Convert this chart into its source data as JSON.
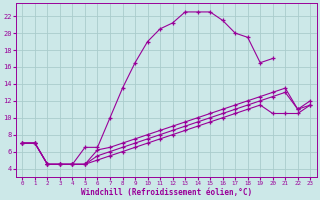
{
  "xlabel": "Windchill (Refroidissement éolien,°C)",
  "bg_color": "#cce8e8",
  "grid_color": "#aacccc",
  "line_color": "#990099",
  "xlim": [
    -0.5,
    23.5
  ],
  "ylim": [
    3,
    23.5
  ],
  "xticks": [
    0,
    1,
    2,
    3,
    4,
    5,
    6,
    7,
    8,
    9,
    10,
    11,
    12,
    13,
    14,
    15,
    16,
    17,
    18,
    19,
    20,
    21,
    22,
    23
  ],
  "yticks": [
    4,
    6,
    8,
    10,
    12,
    14,
    16,
    18,
    20,
    22
  ],
  "curve1_x": [
    0,
    1,
    2,
    3,
    4,
    5,
    6,
    7,
    8,
    9,
    10,
    11,
    12,
    13,
    14,
    15,
    16,
    17,
    18,
    19,
    20
  ],
  "curve1_y": [
    7,
    7,
    4.5,
    4.5,
    4.5,
    6.5,
    6.5,
    10,
    13.5,
    16.5,
    19,
    20.5,
    21.2,
    22.5,
    22.5,
    22.5,
    21.5,
    20,
    19.5,
    16.5,
    17.0
  ],
  "curve2_x": [
    0,
    1,
    2,
    3,
    4,
    5,
    6,
    7,
    8,
    9,
    10,
    11,
    12,
    13,
    14,
    15,
    16,
    17,
    18,
    19,
    20,
    21,
    22,
    23
  ],
  "curve2_y": [
    7,
    7,
    4.5,
    4.5,
    4.5,
    4.5,
    6.2,
    6.5,
    7.0,
    7.5,
    8.0,
    8.5,
    9.0,
    9.5,
    10.0,
    10.5,
    11.0,
    11.5,
    12.0,
    12.5,
    13.0,
    13.5,
    11.0,
    11.5
  ],
  "curve3_x": [
    0,
    1,
    2,
    3,
    4,
    5,
    6,
    7,
    8,
    9,
    10,
    11,
    12,
    13,
    14,
    15,
    16,
    17,
    18,
    19,
    20,
    21,
    22,
    23
  ],
  "curve3_y": [
    7,
    7,
    4.5,
    4.5,
    4.5,
    4.5,
    5.5,
    6.0,
    6.5,
    7.0,
    7.5,
    8.0,
    8.5,
    9.0,
    9.5,
    10.0,
    10.5,
    11.0,
    11.5,
    12.0,
    12.5,
    13.0,
    11.0,
    12.0
  ],
  "curve4_x": [
    0,
    1,
    2,
    3,
    4,
    5,
    6,
    7,
    8,
    9,
    10,
    11,
    12,
    13,
    14,
    15,
    16,
    17,
    18,
    19,
    20,
    21,
    22,
    23
  ],
  "curve4_y": [
    7,
    7,
    4.5,
    4.5,
    4.5,
    4.5,
    5.0,
    5.5,
    6.0,
    6.5,
    7.0,
    7.5,
    8.0,
    8.5,
    9.0,
    9.5,
    10.0,
    10.5,
    11.0,
    11.5,
    10.5,
    10.5,
    10.5,
    11.5
  ]
}
